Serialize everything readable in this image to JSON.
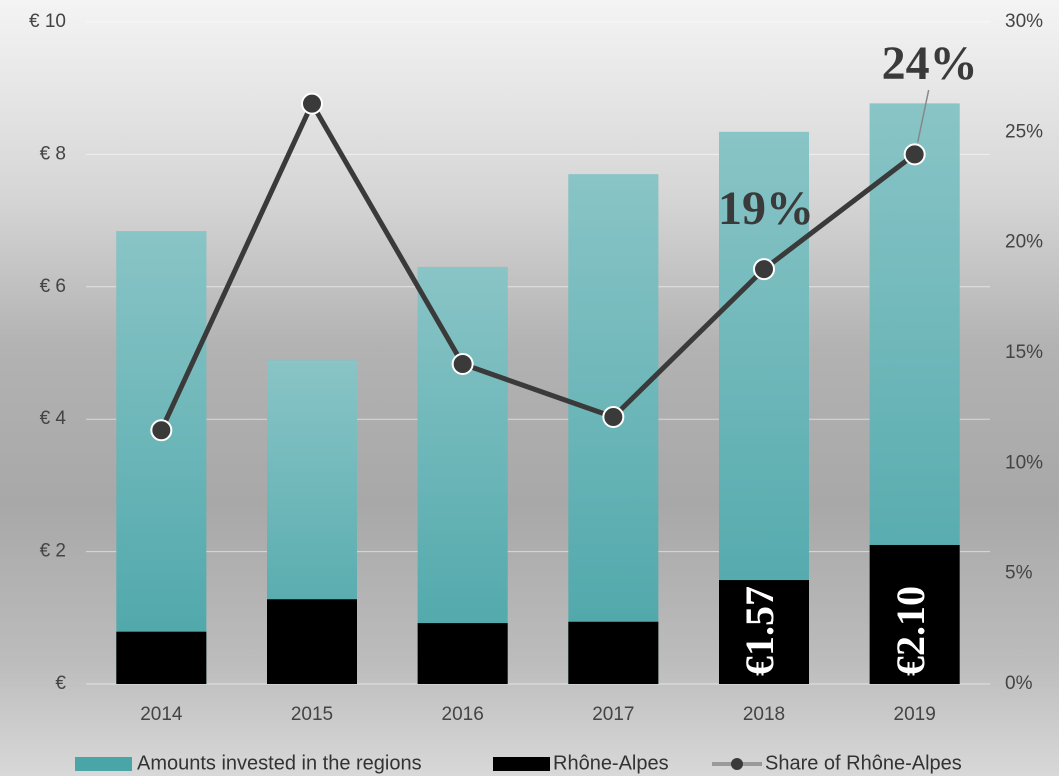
{
  "chart_data": {
    "type": "bar",
    "categories": [
      "2014",
      "2015",
      "2016",
      "2017",
      "2018",
      "2019"
    ],
    "series": [
      {
        "name": "Amounts invested in the regions",
        "color": "#4aa5a8",
        "type": "bar",
        "values": [
          6.84,
          4.89,
          6.3,
          7.7,
          8.34,
          8.77
        ]
      },
      {
        "name": "Rhône-Alpes",
        "color": "#000000",
        "type": "bar",
        "values": [
          0.79,
          1.28,
          0.92,
          0.94,
          1.57,
          2.1
        ],
        "value_labels": [
          null,
          null,
          null,
          null,
          "€1.57",
          "€2.10"
        ]
      },
      {
        "name": "Share of Rhône-Alpes",
        "color": "#3a3a3a",
        "type": "line",
        "axis": "y2",
        "values": [
          11.5,
          26.3,
          14.5,
          12.1,
          18.8,
          24.0
        ],
        "value_labels": [
          null,
          null,
          null,
          null,
          "19%",
          "24%"
        ]
      }
    ],
    "ylim": [
      0,
      10
    ],
    "yticks": [
      {
        "value": 0,
        "label": "€"
      },
      {
        "value": 2,
        "label": "€ 2"
      },
      {
        "value": 4,
        "label": "€ 4"
      },
      {
        "value": 6,
        "label": "€ 6"
      },
      {
        "value": 8,
        "label": "€ 8"
      },
      {
        "value": 10,
        "label": "€ 10"
      }
    ],
    "y2lim": [
      0,
      30
    ],
    "y2ticks": [
      {
        "value": 0,
        "label": "0%"
      },
      {
        "value": 5,
        "label": "5%"
      },
      {
        "value": 10,
        "label": "10%"
      },
      {
        "value": 15,
        "label": "15%"
      },
      {
        "value": 20,
        "label": "20%"
      },
      {
        "value": 25,
        "label": "25%"
      },
      {
        "value": 30,
        "label": "30%"
      }
    ],
    "grid": true,
    "legend": "bottom"
  }
}
